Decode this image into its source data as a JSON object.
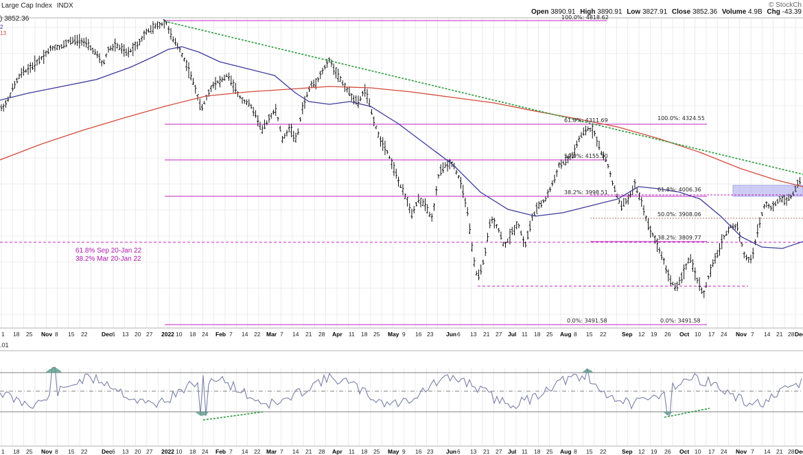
{
  "header": {
    "title": "Large Cap Index",
    "exchange": "INDX",
    "watermark": "© StockCh",
    "date_fragment": "-43.39",
    "last_value": "3852.36",
    "ma50_fragment": "2",
    "ma200_fragment": "13",
    "ohlc": {
      "open_label": "Open",
      "open": "3890.91",
      "high_label": "High",
      "high": "3890.91",
      "low_label": "Low",
      "low": "3827.91",
      "close_label": "Close",
      "close": "3852.36",
      "volume_label": "Volume",
      "volume": "4.9B",
      "chg_label": "Chg",
      "chg": "-43.39"
    },
    "indicator_label": ".01"
  },
  "colors": {
    "price_bars": "#111111",
    "ma_short": "#3a3a9a",
    "ma_long": "#d44a3a",
    "trendline": "#2a9a3a",
    "fib": "#c020c0",
    "zone": "#b8b8f0",
    "grid": "#dedede",
    "rsi": "#7a80a8"
  },
  "annotations": {
    "fib_note_1": "61.8% Sep 20-Jan 22",
    "fib_note_2": "38.2% Mar 20-Jan 22"
  },
  "fib_labels": [
    {
      "text": "100.0%: 4818.62"
    },
    {
      "text": "61.8%: 4311.69"
    },
    {
      "text": "100.0%: 4324.55"
    },
    {
      "text": "50.0%: 4155.10"
    },
    {
      "text": "38.2%: 3998.51"
    },
    {
      "text": "61.8%: 4006.36"
    },
    {
      "text": "50.0%: 3908.06"
    },
    {
      "text": "38.2%: 3809.77"
    },
    {
      "text": "0.0%: 3491.58"
    },
    {
      "text": "0.0%: 3491.58"
    }
  ],
  "chart_data": {
    "type": "bar",
    "title": "Large Cap Index",
    "price_levels": [
      4818.62,
      4324.55,
      4311.69,
      4155.1,
      4006.36,
      3998.51,
      3908.06,
      3809.77,
      3491.58
    ],
    "x_ticks": [
      "1",
      "18",
      "25",
      "Nov",
      "8",
      "15",
      "22",
      "Dec",
      "6",
      "13",
      "20",
      "27",
      "2022",
      "10",
      "18",
      "24",
      "Feb",
      "7",
      "14",
      "22",
      "Mar",
      "7",
      "14",
      "21",
      "28",
      "Apr",
      "11",
      "18",
      "25",
      "May",
      "9",
      "16",
      "23",
      "Jun",
      "6",
      "13",
      "21",
      "27",
      "Jul",
      "11",
      "18",
      "25",
      "Aug",
      "8",
      "15",
      "22",
      "Sep",
      "12",
      "19",
      "26",
      "Oct",
      "10",
      "17",
      "24",
      "Nov",
      "7",
      "14",
      "21",
      "28",
      "Dec"
    ],
    "last_close": 3852.36,
    "series": [
      {
        "name": "Large Cap Index",
        "values": [
          3852.36
        ]
      }
    ]
  }
}
